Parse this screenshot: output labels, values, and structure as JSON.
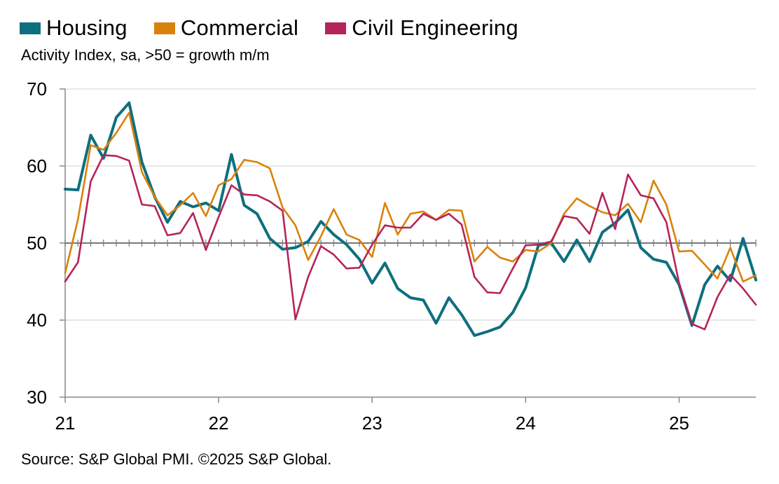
{
  "legend": {
    "items": [
      {
        "label": "Housing",
        "color": "#0e6f7e"
      },
      {
        "label": "Commercial",
        "color": "#d9820b"
      },
      {
        "label": "Civil Engineering",
        "color": "#b5245b"
      }
    ]
  },
  "subtitle": "Activity Index, sa, >50 = growth m/m",
  "source": "Source: S&P Global PMI. ©2025 S&P Global.",
  "chart_data": {
    "type": "line",
    "ylim": [
      30,
      70
    ],
    "yticks": [
      30,
      40,
      50,
      60,
      70
    ],
    "reference_line": 50,
    "grid": true,
    "legend_position": "top-left",
    "x_start": "2021-01",
    "x_end": "2025-06",
    "xtick_labels": [
      "21",
      "22",
      "23",
      "24",
      "25"
    ],
    "series": [
      {
        "name": "Housing",
        "color": "#0e6f7e",
        "values": [
          57.0,
          56.9,
          64.0,
          61.0,
          66.3,
          68.2,
          60.5,
          56.0,
          52.7,
          55.4,
          54.7,
          55.2,
          54.2,
          61.5,
          54.9,
          53.8,
          50.6,
          49.2,
          49.4,
          50.2,
          52.8,
          51.1,
          49.8,
          47.9,
          44.8,
          47.4,
          44.1,
          42.9,
          42.6,
          39.6,
          42.9,
          40.7,
          38.0,
          38.5,
          39.1,
          41.0,
          44.2,
          49.7,
          50.0,
          47.6,
          50.4,
          47.6,
          51.4,
          52.6,
          54.3,
          49.4,
          47.9,
          47.5,
          44.6,
          39.3,
          44.6,
          47.0,
          45.1,
          50.6,
          45.2
        ]
      },
      {
        "name": "Commercial",
        "color": "#d9820b",
        "values": [
          46.1,
          53.1,
          62.7,
          62.1,
          64.3,
          66.9,
          59.2,
          56.0,
          53.6,
          54.9,
          56.5,
          53.5,
          57.5,
          58.3,
          60.8,
          60.5,
          59.7,
          54.6,
          52.3,
          47.8,
          50.9,
          54.4,
          51.1,
          50.4,
          48.2,
          55.2,
          51.1,
          53.8,
          54.1,
          53.0,
          54.3,
          54.2,
          47.6,
          49.5,
          48.1,
          47.6,
          49.1,
          48.9,
          50.0,
          53.8,
          55.8,
          54.8,
          54.0,
          53.6,
          55.1,
          52.7,
          58.1,
          55.0,
          48.9,
          49.0,
          47.2,
          45.4,
          49.4,
          45.0,
          45.8
        ]
      },
      {
        "name": "Civil Engineering",
        "color": "#b5245b",
        "values": [
          45.0,
          47.5,
          58.0,
          61.4,
          61.3,
          60.7,
          55.0,
          54.8,
          51.0,
          51.3,
          53.9,
          49.1,
          53.4,
          57.5,
          56.3,
          56.2,
          55.4,
          54.2,
          40.1,
          45.6,
          49.6,
          48.5,
          46.7,
          46.8,
          49.8,
          52.3,
          52.0,
          52.0,
          53.8,
          53.0,
          53.8,
          52.4,
          45.6,
          43.6,
          43.5,
          46.7,
          49.7,
          49.8,
          50.2,
          53.5,
          53.2,
          51.2,
          56.5,
          51.8,
          58.9,
          56.2,
          55.8,
          52.7,
          44.8,
          39.5,
          38.8,
          43.0,
          45.9,
          44.1,
          42.0
        ]
      }
    ]
  }
}
